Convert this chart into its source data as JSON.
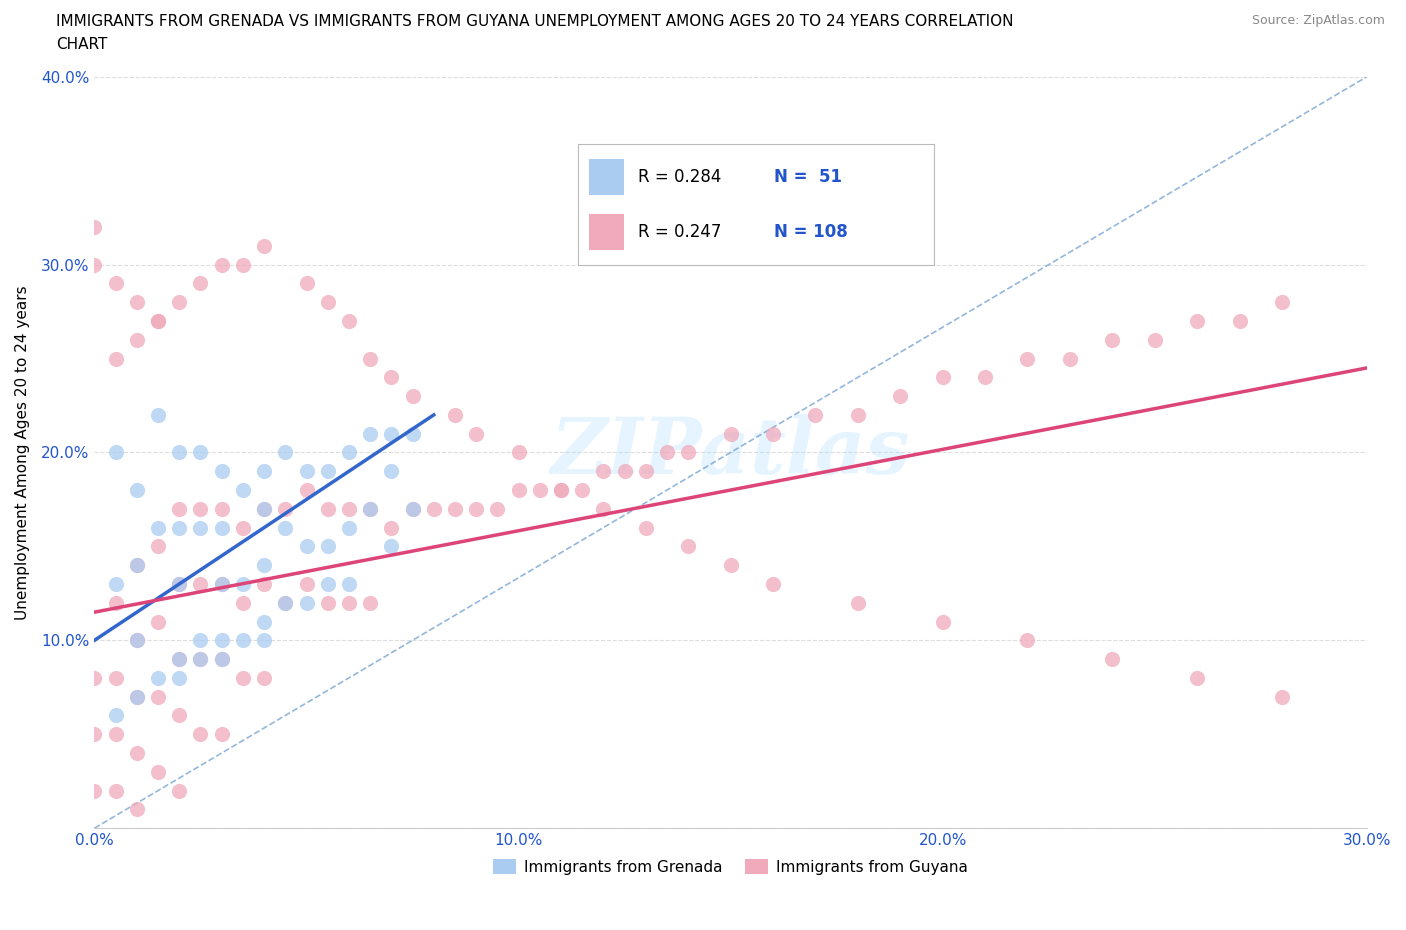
{
  "title": "IMMIGRANTS FROM GRENADA VS IMMIGRANTS FROM GUYANA UNEMPLOYMENT AMONG AGES 20 TO 24 YEARS CORRELATION\nCHART",
  "source": "Source: ZipAtlas.com",
  "xlabel": "Immigrants from Grenada",
  "ylabel": "Unemployment Among Ages 20 to 24 years",
  "xlim": [
    0.0,
    0.3
  ],
  "ylim": [
    0.0,
    0.4
  ],
  "xticks": [
    0.0,
    0.1,
    0.2,
    0.3
  ],
  "yticks": [
    0.0,
    0.1,
    0.2,
    0.3,
    0.4
  ],
  "xtick_labels": [
    "0.0%",
    "10.0%",
    "20.0%",
    "30.0%"
  ],
  "ytick_labels": [
    "",
    "10.0%",
    "20.0%",
    "30.0%",
    "40.0%"
  ],
  "grenada_R": 0.284,
  "grenada_N": 51,
  "guyana_R": 0.247,
  "guyana_N": 108,
  "grenada_color": "#aaccf0",
  "guyana_color": "#f0aabb",
  "grenada_line_color": "#3366cc",
  "guyana_line_color": "#dd4477",
  "ref_line_color": "#6699cc",
  "grid_color": "#dddddd",
  "text_color": "#2255cc",
  "background_color": "#ffffff",
  "grenada_x": [
    0.005,
    0.005,
    0.01,
    0.01,
    0.01,
    0.015,
    0.015,
    0.02,
    0.02,
    0.02,
    0.02,
    0.025,
    0.025,
    0.025,
    0.03,
    0.03,
    0.03,
    0.03,
    0.035,
    0.035,
    0.04,
    0.04,
    0.04,
    0.04,
    0.045,
    0.045,
    0.05,
    0.05,
    0.055,
    0.055,
    0.06,
    0.06,
    0.065,
    0.065,
    0.07,
    0.07,
    0.07,
    0.075,
    0.075,
    0.005,
    0.01,
    0.015,
    0.02,
    0.025,
    0.03,
    0.035,
    0.04,
    0.045,
    0.05,
    0.055,
    0.06
  ],
  "grenada_y": [
    0.2,
    0.13,
    0.18,
    0.14,
    0.1,
    0.22,
    0.16,
    0.2,
    0.16,
    0.13,
    0.08,
    0.2,
    0.16,
    0.1,
    0.19,
    0.16,
    0.13,
    0.09,
    0.18,
    0.13,
    0.19,
    0.17,
    0.14,
    0.1,
    0.2,
    0.16,
    0.19,
    0.15,
    0.19,
    0.15,
    0.2,
    0.16,
    0.21,
    0.17,
    0.21,
    0.19,
    0.15,
    0.21,
    0.17,
    0.06,
    0.07,
    0.08,
    0.09,
    0.09,
    0.1,
    0.1,
    0.11,
    0.12,
    0.12,
    0.13,
    0.13
  ],
  "guyana_x": [
    0.0,
    0.0,
    0.0,
    0.005,
    0.005,
    0.005,
    0.005,
    0.01,
    0.01,
    0.01,
    0.01,
    0.01,
    0.015,
    0.015,
    0.015,
    0.015,
    0.02,
    0.02,
    0.02,
    0.02,
    0.02,
    0.025,
    0.025,
    0.025,
    0.025,
    0.03,
    0.03,
    0.03,
    0.03,
    0.035,
    0.035,
    0.035,
    0.04,
    0.04,
    0.04,
    0.045,
    0.045,
    0.05,
    0.05,
    0.055,
    0.055,
    0.06,
    0.06,
    0.065,
    0.065,
    0.07,
    0.075,
    0.08,
    0.085,
    0.09,
    0.095,
    0.1,
    0.105,
    0.11,
    0.115,
    0.12,
    0.125,
    0.13,
    0.135,
    0.14,
    0.15,
    0.16,
    0.17,
    0.18,
    0.19,
    0.2,
    0.21,
    0.22,
    0.23,
    0.24,
    0.25,
    0.26,
    0.27,
    0.28,
    0.005,
    0.01,
    0.015,
    0.02,
    0.025,
    0.03,
    0.035,
    0.04,
    0.05,
    0.055,
    0.06,
    0.065,
    0.07,
    0.075,
    0.085,
    0.09,
    0.1,
    0.11,
    0.12,
    0.13,
    0.14,
    0.15,
    0.16,
    0.18,
    0.2,
    0.22,
    0.24,
    0.26,
    0.28,
    0.0,
    0.0,
    0.005,
    0.01,
    0.015
  ],
  "guyana_y": [
    0.08,
    0.05,
    0.02,
    0.12,
    0.08,
    0.05,
    0.02,
    0.14,
    0.1,
    0.07,
    0.04,
    0.01,
    0.15,
    0.11,
    0.07,
    0.03,
    0.17,
    0.13,
    0.09,
    0.06,
    0.02,
    0.17,
    0.13,
    0.09,
    0.05,
    0.17,
    0.13,
    0.09,
    0.05,
    0.16,
    0.12,
    0.08,
    0.17,
    0.13,
    0.08,
    0.17,
    0.12,
    0.18,
    0.13,
    0.17,
    0.12,
    0.17,
    0.12,
    0.17,
    0.12,
    0.16,
    0.17,
    0.17,
    0.17,
    0.17,
    0.17,
    0.18,
    0.18,
    0.18,
    0.18,
    0.19,
    0.19,
    0.19,
    0.2,
    0.2,
    0.21,
    0.21,
    0.22,
    0.22,
    0.23,
    0.24,
    0.24,
    0.25,
    0.25,
    0.26,
    0.26,
    0.27,
    0.27,
    0.28,
    0.25,
    0.26,
    0.27,
    0.28,
    0.29,
    0.3,
    0.3,
    0.31,
    0.29,
    0.28,
    0.27,
    0.25,
    0.24,
    0.23,
    0.22,
    0.21,
    0.2,
    0.18,
    0.17,
    0.16,
    0.15,
    0.14,
    0.13,
    0.12,
    0.11,
    0.1,
    0.09,
    0.08,
    0.07,
    0.32,
    0.3,
    0.29,
    0.28,
    0.27
  ],
  "grenada_line_x0": 0.0,
  "grenada_line_x1": 0.08,
  "grenada_line_y0": 0.1,
  "grenada_line_y1": 0.22,
  "guyana_line_x0": 0.0,
  "guyana_line_x1": 0.3,
  "guyana_line_y0": 0.115,
  "guyana_line_y1": 0.245,
  "watermark": "ZIPatlas",
  "legend_grenada": "Immigrants from Grenada",
  "legend_guyana": "Immigrants from Guyana"
}
